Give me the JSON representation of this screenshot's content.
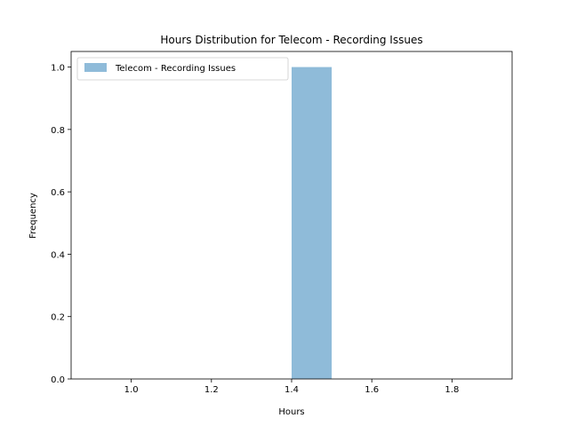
{
  "chart_data": {
    "type": "bar",
    "title": "Hours Distribution for Telecom - Recording Issues",
    "xlabel": "Hours",
    "ylabel": "Frequency",
    "xlim": [
      0.85,
      1.95
    ],
    "ylim": [
      0,
      1.05
    ],
    "xticks": [
      1.0,
      1.2,
      1.4,
      1.6,
      1.8
    ],
    "xtick_labels": [
      "1.0",
      "1.2",
      "1.4",
      "1.6",
      "1.8"
    ],
    "yticks": [
      0.0,
      0.2,
      0.4,
      0.6,
      0.8,
      1.0
    ],
    "ytick_labels": [
      "0.0",
      "0.2",
      "0.4",
      "0.6",
      "0.8",
      "1.0"
    ],
    "grid": false,
    "legend_position": "top-left",
    "series": [
      {
        "name": "Telecom - Recording Issues",
        "color": "#1f77b4",
        "opacity": 0.5,
        "bins": [
          {
            "x0": 0.9,
            "x1": 1.0,
            "value": 0
          },
          {
            "x0": 1.0,
            "x1": 1.1,
            "value": 0
          },
          {
            "x0": 1.1,
            "x1": 1.2,
            "value": 0
          },
          {
            "x0": 1.2,
            "x1": 1.3,
            "value": 0
          },
          {
            "x0": 1.3,
            "x1": 1.4,
            "value": 0
          },
          {
            "x0": 1.4,
            "x1": 1.5,
            "value": 1
          },
          {
            "x0": 1.5,
            "x1": 1.6,
            "value": 0
          },
          {
            "x0": 1.6,
            "x1": 1.7,
            "value": 0
          },
          {
            "x0": 1.7,
            "x1": 1.8,
            "value": 0
          },
          {
            "x0": 1.8,
            "x1": 1.9,
            "value": 0
          }
        ]
      }
    ]
  }
}
